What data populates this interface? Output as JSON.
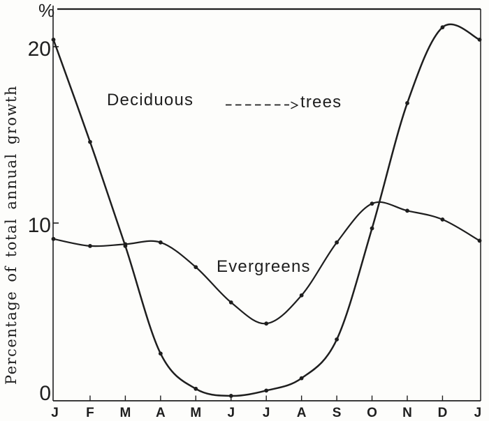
{
  "figure": {
    "percent_symbol": "%",
    "y_axis_title": "Percentage of total annual growth",
    "annotations": {
      "deciduous_label": "Deciduous",
      "deciduous_suffix": "trees",
      "evergreens_label": "Evergreens"
    },
    "ink_color": "#1e1e1e",
    "paper_color": "#fdfdfb"
  },
  "chart_data": {
    "type": "line",
    "title": "",
    "xlabel": "",
    "ylabel": "Percentage of total annual growth",
    "y_unit": "%",
    "categories": [
      "J",
      "F",
      "M",
      "A",
      "M",
      "J",
      "J",
      "A",
      "S",
      "O",
      "N",
      "D",
      "J"
    ],
    "y_ticks": [
      0,
      10,
      20
    ],
    "ylim": [
      0,
      22.2
    ],
    "grid": false,
    "legend": "inline labels; dashed leader line points from 'Deciduous' label toward curve",
    "series": [
      {
        "name": "Deciduous trees",
        "line": "solid",
        "marker": "dot",
        "values": [
          20.4,
          14.6,
          8.7,
          2.6,
          0.6,
          0.2,
          0.5,
          1.2,
          3.4,
          9.7,
          16.8,
          21.1,
          20.4
        ]
      },
      {
        "name": "Evergreens",
        "line": "solid",
        "marker": "dot",
        "values": [
          9.1,
          8.7,
          8.8,
          8.9,
          7.5,
          5.5,
          4.3,
          5.9,
          8.9,
          11.1,
          10.7,
          10.2,
          9.0
        ]
      }
    ]
  }
}
